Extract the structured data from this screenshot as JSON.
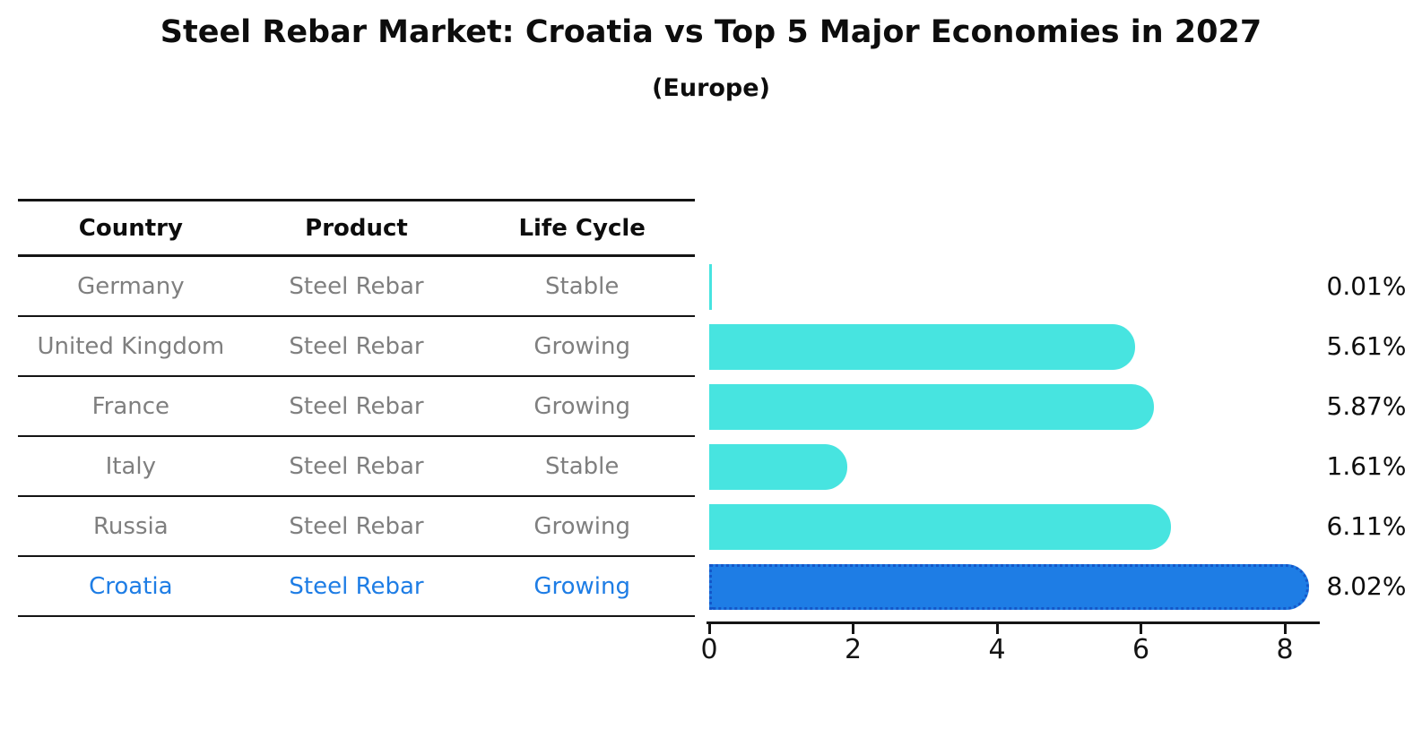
{
  "title": "Steel Rebar Market: Croatia vs Top 5 Major Economies in 2027",
  "subtitle": "(Europe)",
  "table": {
    "headers": [
      "Country",
      "Product",
      "Life Cycle"
    ],
    "rows": [
      {
        "country": "Germany",
        "product": "Steel Rebar",
        "life_cycle": "Stable",
        "highlight": false
      },
      {
        "country": "United Kingdom",
        "product": "Steel Rebar",
        "life_cycle": "Growing",
        "highlight": false
      },
      {
        "country": "France",
        "product": "Steel Rebar",
        "life_cycle": "Growing",
        "highlight": false
      },
      {
        "country": "Italy",
        "product": "Steel Rebar",
        "life_cycle": "Stable",
        "highlight": false
      },
      {
        "country": "Russia",
        "product": "Steel Rebar",
        "life_cycle": "Growing",
        "highlight": false
      },
      {
        "country": "Croatia",
        "product": "Steel Rebar",
        "life_cycle": "Growing",
        "highlight": true
      }
    ]
  },
  "chart_data": {
    "type": "bar",
    "orientation": "horizontal",
    "title": "Steel Rebar Market: Croatia vs Top 5 Major Economies in 2027",
    "subtitle": "(Europe)",
    "categories": [
      "Germany",
      "United Kingdom",
      "France",
      "Italy",
      "Russia",
      "Croatia"
    ],
    "values": [
      0.01,
      5.61,
      5.87,
      1.61,
      6.11,
      8.02
    ],
    "value_labels": [
      "0.01%",
      "5.61%",
      "5.87%",
      "1.61%",
      "6.11%",
      "8.02%"
    ],
    "highlight_index": 5,
    "xticks": [
      0,
      2,
      4,
      6,
      8
    ],
    "xlim": [
      0,
      8.44
    ],
    "grid": false,
    "legend": false,
    "colors": {
      "bar": "#47E4E0",
      "highlight_bar": "#1E7DE5",
      "highlight_border": "#1457C9",
      "row_text": "#7f7f7f",
      "highlight_text": "#1E7DE5",
      "axis": "#141414"
    }
  }
}
